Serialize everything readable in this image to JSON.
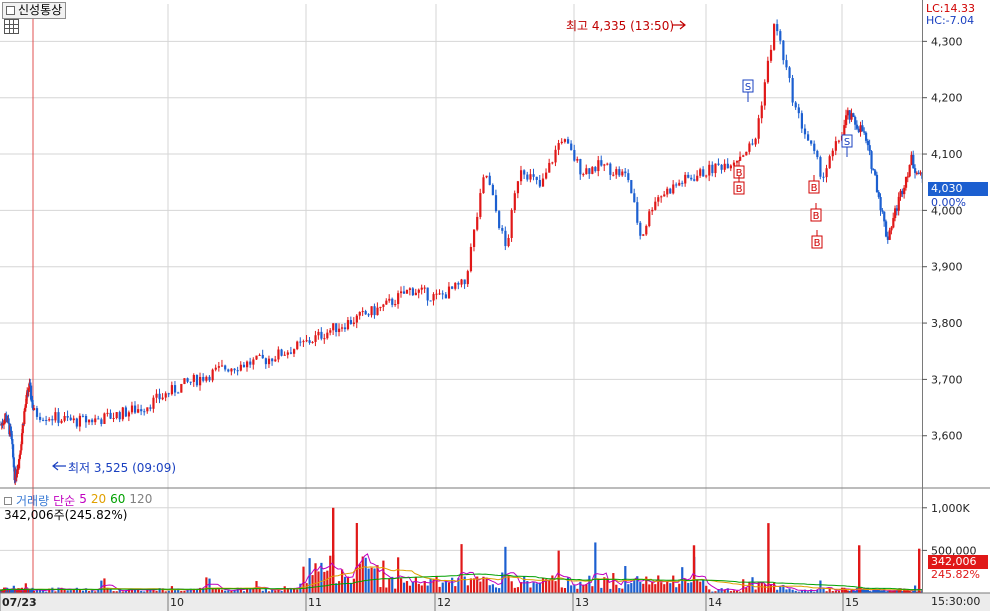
{
  "window": {
    "stock_name": "신성통상",
    "lc_label": "LC:14.33",
    "hc_label": "HC:-7.04"
  },
  "price_panel": {
    "current_price_label": "4,030",
    "change_label": "0.00%",
    "high_annotation": "최고 4,335 (13:50)",
    "low_annotation": "최저 3,525 (09:09)",
    "buy_marker": "B",
    "sell_marker": "S",
    "colors": {
      "up": "#e01818",
      "down": "#1c5fd0",
      "grid": "#d6d6d6",
      "axis_bg": "#ffffff"
    }
  },
  "volume_panel": {
    "legend": [
      {
        "text": "거래량",
        "color": "#3a7bd5"
      },
      {
        "text": "단순",
        "color": "#c000c0"
      },
      {
        "text": "5",
        "color": "#c000c0"
      },
      {
        "text": "20",
        "color": "#e0a000"
      },
      {
        "text": "60",
        "color": "#00a000"
      },
      {
        "text": "120",
        "color": "#808080"
      }
    ],
    "value_label": "342,006주(245.82%)",
    "current_box": "342,006",
    "current_pct": "245.82%"
  },
  "x_axis": {
    "labels": [
      "07/23",
      "10",
      "11",
      "12",
      "13",
      "14",
      "15"
    ],
    "right_label": "15:30:00"
  },
  "chart_data": {
    "type": "candlestick",
    "y_axis": {
      "range": [
        3525,
        4345
      ],
      "ticks": [
        3600,
        3700,
        3800,
        3900,
        4000,
        4100,
        4200,
        4300
      ],
      "tick_labels": [
        "3,600",
        "3,700",
        "3,800",
        "3,900",
        "4,000",
        "4,100",
        "4,200",
        "4,300"
      ]
    },
    "volume_axis": {
      "range": [
        0,
        1150000
      ],
      "ticks": [
        500000,
        1000000
      ],
      "tick_labels": [
        "500,000",
        "1,000K"
      ]
    },
    "sessions": [
      "07/23",
      "10",
      "11",
      "12",
      "13",
      "14",
      "15"
    ],
    "close_path": [
      [
        0,
        3620
      ],
      [
        0.15,
        3635
      ],
      [
        0.3,
        3600
      ],
      [
        0.42,
        3525
      ],
      [
        0.55,
        3560
      ],
      [
        0.7,
        3640
      ],
      [
        0.85,
        3690
      ],
      [
        1.0,
        3640
      ],
      [
        1.3,
        3625
      ],
      [
        1.5,
        3630
      ],
      [
        1.8,
        3650
      ],
      [
        2.1,
        3690
      ],
      [
        2.4,
        3720
      ],
      [
        2.7,
        3735
      ],
      [
        2.95,
        3760
      ],
      [
        3.2,
        3790
      ],
      [
        3.4,
        3810
      ],
      [
        3.6,
        3830
      ],
      [
        3.8,
        3860
      ],
      [
        4.0,
        3845
      ],
      [
        4.2,
        3870
      ],
      [
        4.35,
        4070
      ],
      [
        4.5,
        3930
      ],
      [
        4.6,
        4080
      ],
      [
        4.75,
        4040
      ],
      [
        4.9,
        4130
      ],
      [
        5.05,
        4070
      ],
      [
        5.2,
        4080
      ],
      [
        5.4,
        4060
      ],
      [
        5.5,
        3950
      ],
      [
        5.6,
        4020
      ],
      [
        5.8,
        4050
      ],
      [
        6.0,
        4070
      ],
      [
        6.2,
        4090
      ],
      [
        6.35,
        4120
      ],
      [
        6.5,
        4335
      ],
      [
        6.65,
        4180
      ],
      [
        6.85,
        4060
      ],
      [
        7.05,
        4170
      ],
      [
        7.25,
        4140
      ],
      [
        7.4,
        4060
      ],
      [
        7.55,
        3950
      ],
      [
        7.7,
        4020
      ],
      [
        7.85,
        4090
      ],
      [
        8.0,
        4050
      ],
      [
        8.15,
        4030
      ]
    ],
    "buy_signals_x": [
      7.0,
      7.05,
      7.6,
      7.65,
      7.7
    ],
    "sell_signals_x": [
      7.1,
      7.95
    ]
  }
}
